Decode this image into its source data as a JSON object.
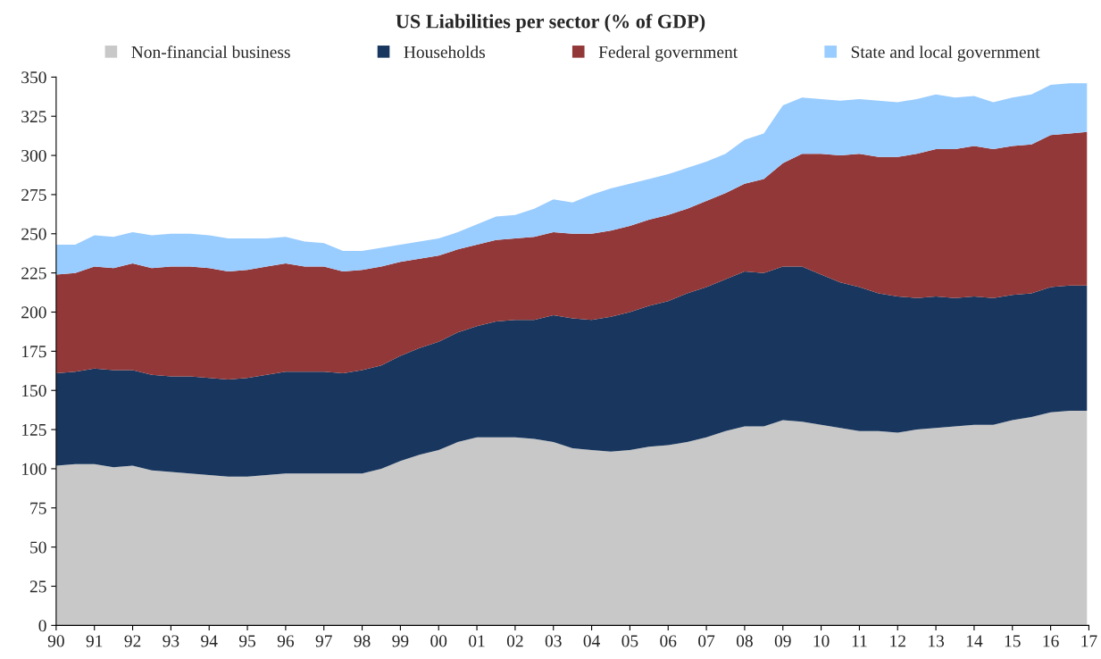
{
  "chart_data": {
    "type": "area",
    "stacked": true,
    "title": "US Liabilities per sector (% of GDP)",
    "x": [
      1990.0,
      1990.5,
      1991.0,
      1991.5,
      1992.0,
      1992.5,
      1993.0,
      1993.5,
      1994.0,
      1994.5,
      1995.0,
      1995.5,
      1996.0,
      1996.5,
      1997.0,
      1997.5,
      1998.0,
      1998.5,
      1999.0,
      1999.5,
      2000.0,
      2000.5,
      2001.0,
      2001.5,
      2002.0,
      2002.5,
      2003.0,
      2003.5,
      2004.0,
      2004.5,
      2005.0,
      2005.5,
      2006.0,
      2006.5,
      2007.0,
      2007.5,
      2008.0,
      2008.5,
      2009.0,
      2009.5,
      2010.0,
      2010.5,
      2011.0,
      2011.5,
      2012.0,
      2012.5,
      2013.0,
      2013.5,
      2014.0,
      2014.5,
      2015.0,
      2015.5,
      2016.0,
      2016.5,
      2016.95
    ],
    "series": [
      {
        "name": "Non-financial business",
        "color": "#c8c8c8",
        "values": [
          102,
          103,
          103,
          101,
          102,
          99,
          98,
          97,
          96,
          95,
          95,
          96,
          97,
          97,
          97,
          97,
          97,
          100,
          105,
          109,
          112,
          117,
          120,
          120,
          120,
          119,
          117,
          113,
          112,
          111,
          112,
          114,
          115,
          117,
          120,
          124,
          127,
          127,
          131,
          130,
          128,
          126,
          124,
          124,
          123,
          125,
          126,
          127,
          128,
          128,
          131,
          133,
          136,
          137,
          137
        ]
      },
      {
        "name": "Households",
        "color": "#19375e",
        "values": [
          59,
          59,
          61,
          62,
          61,
          61,
          61,
          62,
          62,
          62,
          63,
          64,
          65,
          65,
          65,
          64,
          66,
          66,
          67,
          68,
          69,
          70,
          71,
          74,
          75,
          76,
          81,
          83,
          83,
          86,
          88,
          90,
          92,
          95,
          96,
          97,
          99,
          98,
          98,
          99,
          96,
          93,
          92,
          88,
          87,
          84,
          84,
          82,
          82,
          81,
          80,
          79,
          80,
          80,
          80
        ]
      },
      {
        "name": "Federal government",
        "color": "#933838",
        "values": [
          63,
          63,
          65,
          65,
          68,
          68,
          70,
          70,
          70,
          69,
          69,
          69,
          69,
          67,
          67,
          65,
          64,
          63,
          60,
          57,
          55,
          53,
          52,
          52,
          52,
          53,
          53,
          54,
          55,
          55,
          55,
          55,
          55,
          54,
          55,
          55,
          56,
          60,
          66,
          72,
          77,
          81,
          85,
          87,
          89,
          92,
          94,
          95,
          96,
          95,
          95,
          95,
          97,
          97,
          98
        ]
      },
      {
        "name": "State and local government",
        "color": "#99ccff",
        "values": [
          19,
          18,
          20,
          20,
          20,
          21,
          21,
          21,
          21,
          21,
          20,
          18,
          17,
          16,
          15,
          13,
          12,
          12,
          11,
          11,
          11,
          11,
          13,
          15,
          15,
          18,
          21,
          20,
          25,
          27,
          27,
          26,
          26,
          26,
          25,
          25,
          28,
          29,
          37,
          36,
          35,
          35,
          35,
          36,
          35,
          35,
          35,
          33,
          32,
          30,
          31,
          32,
          32,
          32,
          31
        ]
      }
    ],
    "xlim": [
      1990,
      2017
    ],
    "xticks": [
      {
        "value": 1990,
        "label": "90"
      },
      {
        "value": 1991,
        "label": "91"
      },
      {
        "value": 1992,
        "label": "92"
      },
      {
        "value": 1993,
        "label": "93"
      },
      {
        "value": 1994,
        "label": "94"
      },
      {
        "value": 1995,
        "label": "95"
      },
      {
        "value": 1996,
        "label": "96"
      },
      {
        "value": 1997,
        "label": "97"
      },
      {
        "value": 1998,
        "label": "98"
      },
      {
        "value": 1999,
        "label": "99"
      },
      {
        "value": 2000,
        "label": "00"
      },
      {
        "value": 2001,
        "label": "01"
      },
      {
        "value": 2002,
        "label": "02"
      },
      {
        "value": 2003,
        "label": "03"
      },
      {
        "value": 2004,
        "label": "04"
      },
      {
        "value": 2005,
        "label": "05"
      },
      {
        "value": 2006,
        "label": "06"
      },
      {
        "value": 2007,
        "label": "07"
      },
      {
        "value": 2008,
        "label": "08"
      },
      {
        "value": 2009,
        "label": "09"
      },
      {
        "value": 2010,
        "label": "10"
      },
      {
        "value": 2011,
        "label": "11"
      },
      {
        "value": 2012,
        "label": "12"
      },
      {
        "value": 2013,
        "label": "13"
      },
      {
        "value": 2014,
        "label": "14"
      },
      {
        "value": 2015,
        "label": "15"
      },
      {
        "value": 2016,
        "label": "16"
      },
      {
        "value": 2017,
        "label": "17"
      }
    ],
    "ylim": [
      0,
      350
    ],
    "yticks": [
      0,
      25,
      50,
      75,
      100,
      125,
      150,
      175,
      200,
      225,
      250,
      275,
      300,
      325,
      350
    ],
    "legend": "top",
    "grid": false
  }
}
